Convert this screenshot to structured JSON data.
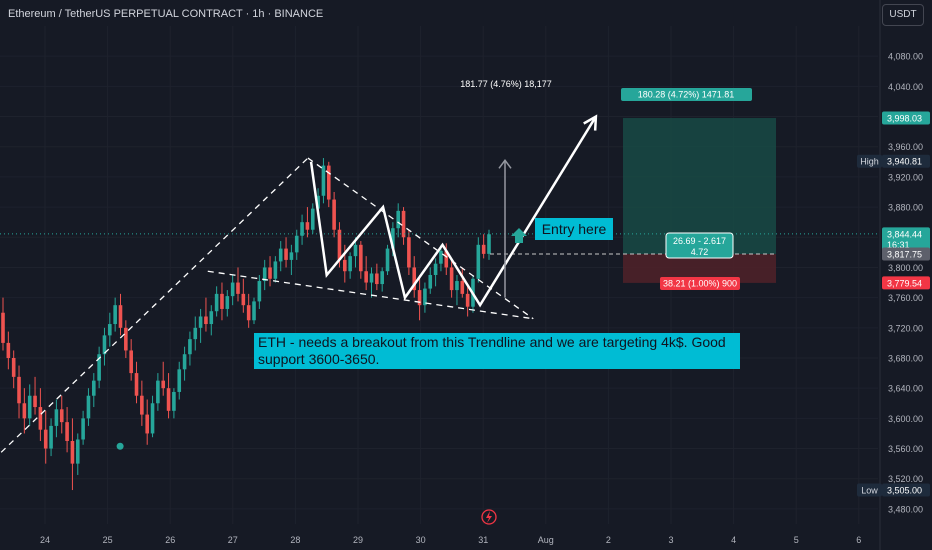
{
  "header": {
    "title": "Ethereum / TetherUS PERPETUAL CONTRACT · 1h · BINANCE"
  },
  "currency_button": "USDT",
  "annotations": {
    "note": "ETH - needs a breakout from this Trendline and we are targeting 4k$. Good support 3600-3650.",
    "entry_label": "Entry here",
    "measure": "181.77 (4.76%) 18,177",
    "target_box": "180.28 (4.72%) 1471.81",
    "stop_box": "38.21 (1.00%) 900",
    "rr_box": [
      "26.69 - 2.617",
      "4.72"
    ]
  },
  "colors": {
    "background": "#161a25",
    "up": "#26a69a",
    "down": "#ef5350",
    "note_bg": "#00bcd4",
    "target_zone": "#174a45",
    "stop_zone": "#4c2129",
    "target_label": "#26a69a",
    "stop_label": "#f23645",
    "grid": "#1e222d",
    "drawing": "#ffffff"
  },
  "chart_data": {
    "type": "candlestick",
    "y_axis": {
      "min": 3460,
      "max": 4120,
      "ticks": [
        3480,
        3520,
        3560,
        3600,
        3640,
        3680,
        3720,
        3760,
        3800,
        3840,
        3880,
        3920,
        3960,
        4000,
        4040,
        4080
      ],
      "tick_labels": [
        "3,480.00",
        "3,520.00",
        "3,560.00",
        "3,600.00",
        "3,640.00",
        "3,680.00",
        "3,720.00",
        "3,760.00",
        "3,800.00",
        "3,840.00",
        "3,880.00",
        "3,920.00",
        "3,960.00",
        "4,000.00",
        "4,040.00",
        "4,080.00"
      ]
    },
    "x_axis": {
      "labels": [
        "24",
        "25",
        "26",
        "27",
        "28",
        "29",
        "30",
        "31",
        "Aug",
        "2",
        "3",
        "4",
        "5",
        "6"
      ]
    },
    "price_labels": [
      {
        "name": "target",
        "value": 3998.03,
        "text": "3,998.03",
        "color": "#26a69a"
      },
      {
        "name": "high",
        "value": 3940.81,
        "text": "3,940.81",
        "tag": "High",
        "color": "#1e2b3c"
      },
      {
        "name": "current",
        "value": 3844.44,
        "text": "3,844.44",
        "countdown": "16:31",
        "color": "#26a69a"
      },
      {
        "name": "entry",
        "value": 3817.75,
        "text": "3,817.75",
        "color": "#5d606b"
      },
      {
        "name": "stop",
        "value": 3779.54,
        "text": "3,779.54",
        "color": "#f23645"
      },
      {
        "name": "low",
        "value": 3505.0,
        "text": "3,505.00",
        "tag": "Low",
        "color": "#1e2b3c"
      }
    ],
    "position": {
      "entry": 3817.75,
      "target": 3998.03,
      "stop": 3779.54
    },
    "measure_arrow": {
      "from": 3760,
      "to": 3942
    },
    "triangle_upper": [
      [
        28.2,
        3945
      ],
      [
        31.8,
        3732
      ]
    ],
    "triangle_lower": [
      [
        26.6,
        3795
      ],
      [
        31.8,
        3732
      ]
    ],
    "left_trendline": [
      [
        23.3,
        3555
      ],
      [
        28.2,
        3945
      ]
    ],
    "zigzag": [
      [
        28.25,
        3940
      ],
      [
        28.5,
        3790
      ],
      [
        29.4,
        3880
      ],
      [
        29.75,
        3760
      ],
      [
        30.35,
        3830
      ],
      [
        30.95,
        3750
      ],
      [
        32.8,
        4000
      ]
    ],
    "support_dot": {
      "x": 25.2,
      "y": 3563
    },
    "candles": [
      [
        3740,
        3760,
        3690,
        3700
      ],
      [
        3700,
        3715,
        3665,
        3680
      ],
      [
        3680,
        3690,
        3640,
        3655
      ],
      [
        3655,
        3670,
        3600,
        3620
      ],
      [
        3620,
        3640,
        3580,
        3600
      ],
      [
        3600,
        3645,
        3590,
        3630
      ],
      [
        3630,
        3655,
        3605,
        3615
      ],
      [
        3615,
        3640,
        3570,
        3585
      ],
      [
        3585,
        3610,
        3540,
        3560
      ],
      [
        3560,
        3600,
        3550,
        3590
      ],
      [
        3590,
        3625,
        3575,
        3612
      ],
      [
        3612,
        3630,
        3580,
        3595
      ],
      [
        3595,
        3615,
        3555,
        3570
      ],
      [
        3570,
        3600,
        3505,
        3540
      ],
      [
        3540,
        3580,
        3525,
        3572
      ],
      [
        3572,
        3610,
        3565,
        3600
      ],
      [
        3600,
        3640,
        3590,
        3630
      ],
      [
        3630,
        3660,
        3615,
        3650
      ],
      [
        3650,
        3695,
        3640,
        3685
      ],
      [
        3685,
        3720,
        3670,
        3710
      ],
      [
        3710,
        3740,
        3695,
        3725
      ],
      [
        3725,
        3760,
        3715,
        3750
      ],
      [
        3750,
        3765,
        3710,
        3720
      ],
      [
        3720,
        3730,
        3680,
        3690
      ],
      [
        3690,
        3705,
        3650,
        3660
      ],
      [
        3660,
        3675,
        3620,
        3630
      ],
      [
        3630,
        3650,
        3590,
        3605
      ],
      [
        3605,
        3625,
        3565,
        3580
      ],
      [
        3580,
        3630,
        3575,
        3620
      ],
      [
        3620,
        3660,
        3610,
        3650
      ],
      [
        3650,
        3675,
        3630,
        3640
      ],
      [
        3640,
        3660,
        3600,
        3610
      ],
      [
        3610,
        3640,
        3600,
        3635
      ],
      [
        3635,
        3675,
        3625,
        3665
      ],
      [
        3665,
        3695,
        3650,
        3685
      ],
      [
        3685,
        3715,
        3670,
        3705
      ],
      [
        3705,
        3735,
        3690,
        3720
      ],
      [
        3720,
        3745,
        3700,
        3735
      ],
      [
        3735,
        3760,
        3715,
        3725
      ],
      [
        3725,
        3750,
        3710,
        3742
      ],
      [
        3742,
        3775,
        3735,
        3765
      ],
      [
        3765,
        3780,
        3730,
        3745
      ],
      [
        3745,
        3770,
        3735,
        3762
      ],
      [
        3762,
        3790,
        3750,
        3780
      ],
      [
        3780,
        3800,
        3755,
        3765
      ],
      [
        3765,
        3785,
        3740,
        3750
      ],
      [
        3750,
        3765,
        3720,
        3730
      ],
      [
        3730,
        3760,
        3725,
        3755
      ],
      [
        3755,
        3790,
        3745,
        3782
      ],
      [
        3782,
        3810,
        3770,
        3800
      ],
      [
        3800,
        3815,
        3775,
        3785
      ],
      [
        3785,
        3815,
        3780,
        3808
      ],
      [
        3808,
        3835,
        3795,
        3825
      ],
      [
        3825,
        3840,
        3800,
        3810
      ],
      [
        3810,
        3830,
        3790,
        3820
      ],
      [
        3820,
        3850,
        3810,
        3842
      ],
      [
        3842,
        3870,
        3830,
        3860
      ],
      [
        3860,
        3880,
        3840,
        3850
      ],
      [
        3850,
        3885,
        3845,
        3878
      ],
      [
        3878,
        3905,
        3865,
        3895
      ],
      [
        3895,
        3945,
        3885,
        3935
      ],
      [
        3935,
        3940,
        3880,
        3890
      ],
      [
        3890,
        3900,
        3840,
        3850
      ],
      [
        3850,
        3860,
        3800,
        3810
      ],
      [
        3810,
        3830,
        3780,
        3795
      ],
      [
        3795,
        3820,
        3785,
        3815
      ],
      [
        3815,
        3840,
        3800,
        3830
      ],
      [
        3830,
        3835,
        3785,
        3795
      ],
      [
        3795,
        3815,
        3770,
        3780
      ],
      [
        3780,
        3800,
        3760,
        3792
      ],
      [
        3792,
        3805,
        3770,
        3778
      ],
      [
        3778,
        3800,
        3768,
        3795
      ],
      [
        3795,
        3830,
        3790,
        3825
      ],
      [
        3825,
        3860,
        3815,
        3852
      ],
      [
        3852,
        3885,
        3840,
        3875
      ],
      [
        3875,
        3880,
        3830,
        3840
      ],
      [
        3840,
        3850,
        3790,
        3800
      ],
      [
        3800,
        3815,
        3760,
        3770
      ],
      [
        3770,
        3790,
        3730,
        3750
      ],
      [
        3750,
        3780,
        3740,
        3772
      ],
      [
        3772,
        3800,
        3765,
        3790
      ],
      [
        3790,
        3812,
        3775,
        3805
      ],
      [
        3805,
        3830,
        3795,
        3822
      ],
      [
        3822,
        3832,
        3790,
        3800
      ],
      [
        3800,
        3810,
        3760,
        3770
      ],
      [
        3770,
        3790,
        3750,
        3782
      ],
      [
        3782,
        3800,
        3760,
        3765
      ],
      [
        3765,
        3775,
        3735,
        3748
      ],
      [
        3748,
        3790,
        3740,
        3785
      ],
      [
        3785,
        3840,
        3780,
        3830
      ],
      [
        3830,
        3844,
        3812,
        3818
      ],
      [
        3818,
        3850,
        3810,
        3844
      ]
    ]
  }
}
